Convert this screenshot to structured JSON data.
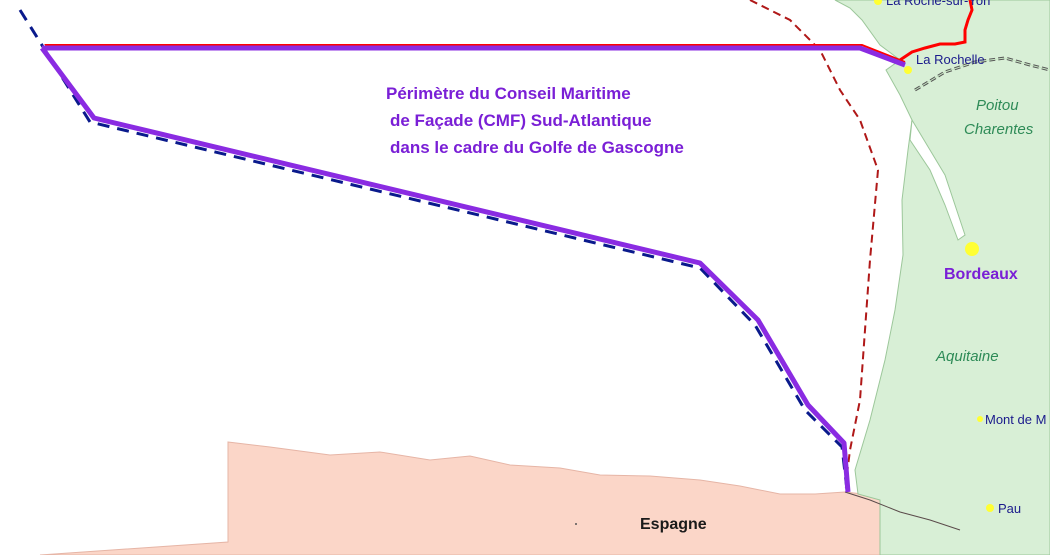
{
  "map": {
    "title_lines": [
      "Périmètre du Conseil Maritime",
      "de Façade (CMF) Sud-Atlantique",
      "dans le cadre du Golfe de Gascogne"
    ],
    "places": {
      "la_roche_sur_yon": "La Roche-sur-Yon",
      "la_rochelle": "La Rochelle",
      "bordeaux": "Bordeaux",
      "mont_de_marsan": "Mont de M",
      "pau": "Pau",
      "espagne": "Espagne"
    },
    "regions": {
      "poitou_line1": "Poitou",
      "poitou_line2": "Charentes",
      "aquitaine": "Aquitaine"
    },
    "colors": {
      "sea": "#ffffff",
      "france_land": "#d8efd6",
      "spain_land": "#fbd6c8",
      "perimeter_purple": "#8a2be2",
      "dashed_blue": "#0a1a8c",
      "boundary_red": "#ff0000",
      "dashed_dark_red": "#b01818",
      "city_dot": "#ffff33"
    }
  }
}
